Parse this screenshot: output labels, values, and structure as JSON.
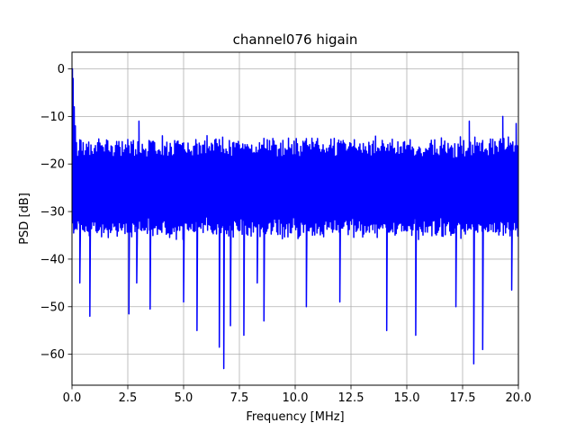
{
  "chart_data": {
    "type": "line",
    "title": "channel076 higain",
    "xlabel": "Frequency [MHz]",
    "ylabel": "PSD [dB]",
    "xlim": [
      0,
      20
    ],
    "ylim": [
      -66.5,
      3.5
    ],
    "x_ticks": [
      0,
      2.5,
      5,
      7.5,
      10,
      12.5,
      15,
      17.5,
      20
    ],
    "x_tick_labels": [
      "0.0",
      "2.5",
      "5.0",
      "7.5",
      "10.0",
      "12.5",
      "15.0",
      "17.5",
      "20.0"
    ],
    "y_ticks": [
      0,
      -10,
      -20,
      -30,
      -40,
      -50,
      -60
    ],
    "y_tick_labels": [
      "0",
      "−10",
      "−20",
      "−30",
      "−40",
      "−50",
      "−60"
    ],
    "grid": true,
    "series": [
      {
        "color": "#0000ff",
        "points_count": 800,
        "upper_envelope_dB": -15,
        "lower_envelope_dB": -35,
        "peaks": [
          {
            "x": 0.02,
            "y": 0
          },
          {
            "x": 0.05,
            "y": -2
          },
          {
            "x": 0.1,
            "y": -8
          },
          {
            "x": 0.15,
            "y": -12
          },
          {
            "x": 3.0,
            "y": -11
          },
          {
            "x": 17.8,
            "y": -11
          },
          {
            "x": 19.3,
            "y": -10
          },
          {
            "x": 19.9,
            "y": -11.5
          }
        ],
        "dips": [
          {
            "x": 0.35,
            "y": -45
          },
          {
            "x": 0.8,
            "y": -52
          },
          {
            "x": 2.55,
            "y": -51.5
          },
          {
            "x": 2.9,
            "y": -45
          },
          {
            "x": 3.5,
            "y": -50.5
          },
          {
            "x": 5.0,
            "y": -49
          },
          {
            "x": 5.6,
            "y": -55
          },
          {
            "x": 6.6,
            "y": -58.5
          },
          {
            "x": 6.8,
            "y": -63
          },
          {
            "x": 7.1,
            "y": -54
          },
          {
            "x": 7.7,
            "y": -56
          },
          {
            "x": 8.3,
            "y": -45
          },
          {
            "x": 8.6,
            "y": -53
          },
          {
            "x": 10.5,
            "y": -50
          },
          {
            "x": 12.0,
            "y": -49
          },
          {
            "x": 14.1,
            "y": -55
          },
          {
            "x": 15.4,
            "y": -56
          },
          {
            "x": 17.2,
            "y": -50
          },
          {
            "x": 18.0,
            "y": -62
          },
          {
            "x": 18.4,
            "y": -59
          },
          {
            "x": 19.7,
            "y": -46.5
          }
        ]
      }
    ]
  }
}
